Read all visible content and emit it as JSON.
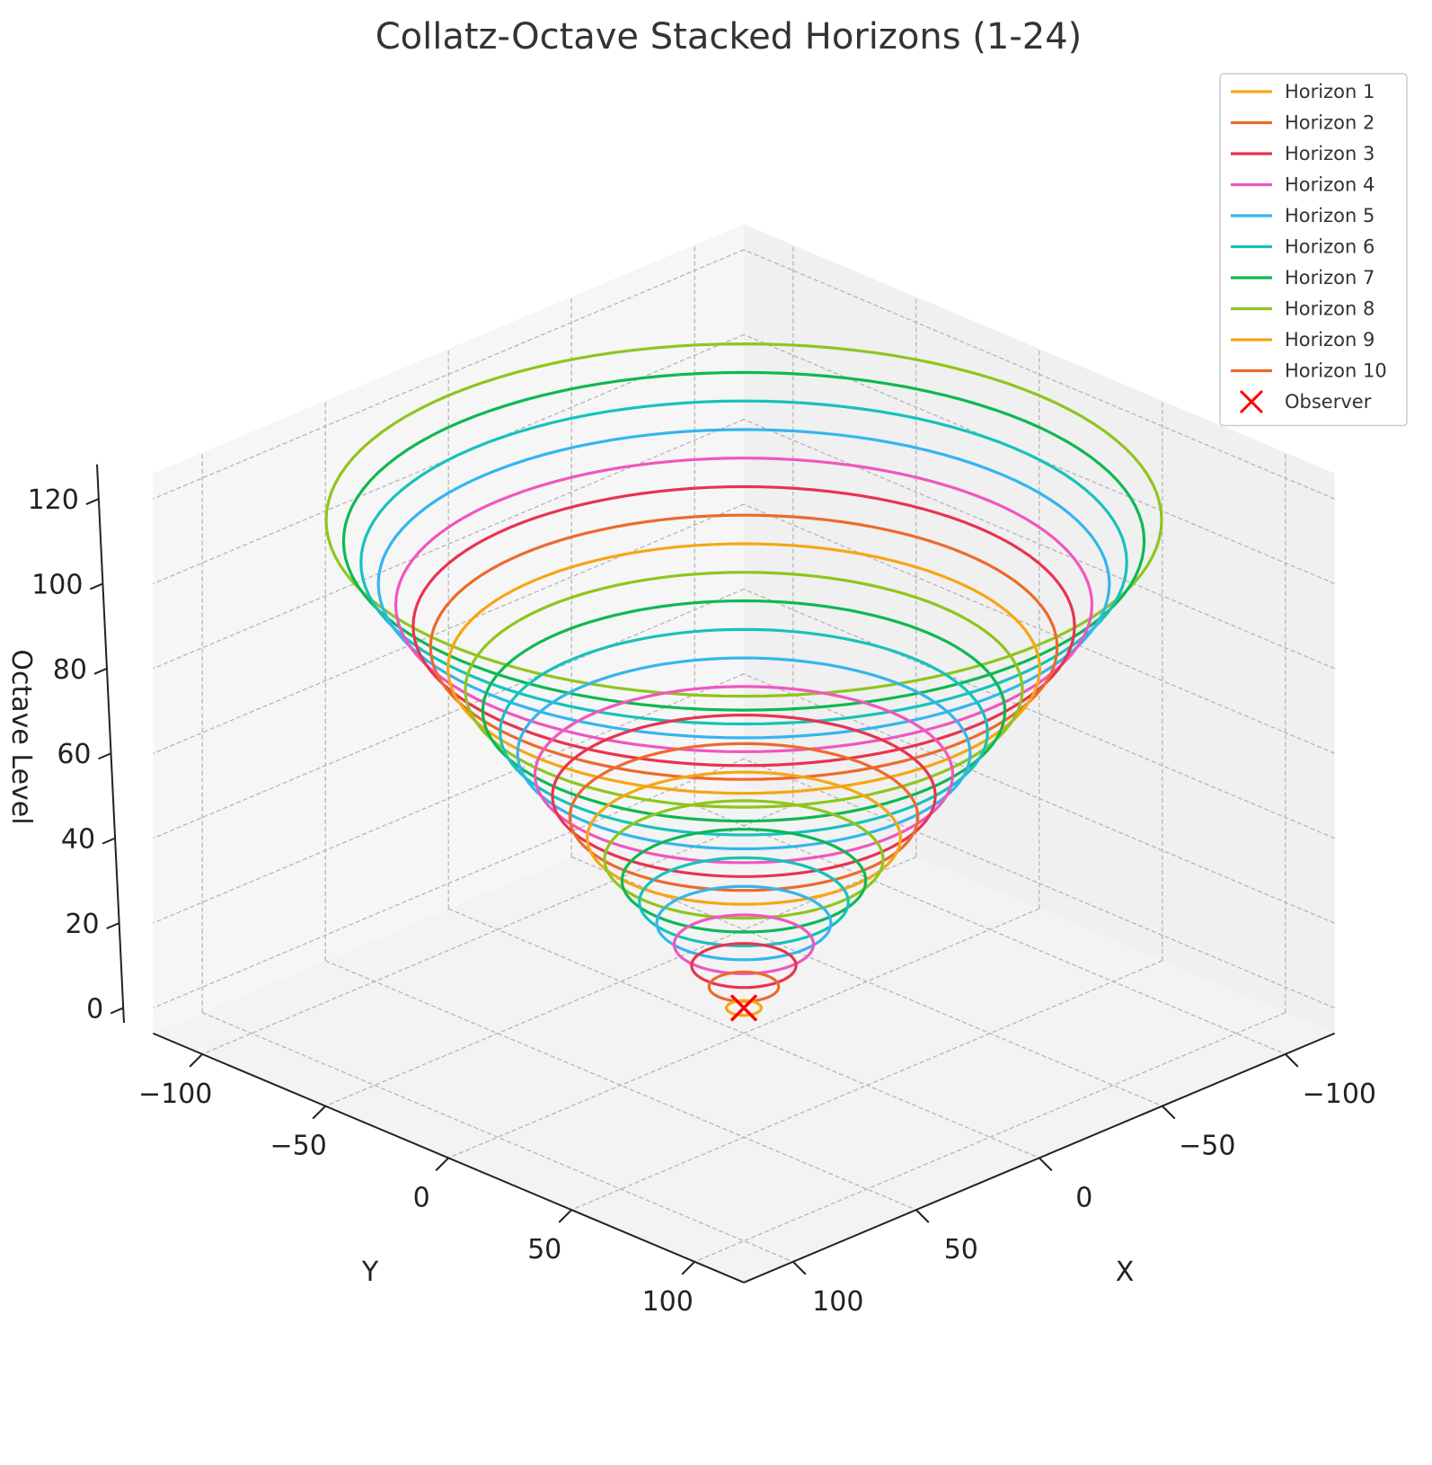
{
  "chart_data": {
    "type": "line",
    "projection": "3d",
    "title": "Collatz-Octave Stacked Horizons (1-24)",
    "xlabel": "X",
    "ylabel": "Y",
    "zlabel": "Octave Level",
    "xlim": [
      -120,
      120
    ],
    "ylim": [
      -120,
      120
    ],
    "zlim": [
      0,
      120
    ],
    "xticks": [
      -100,
      -50,
      0,
      50,
      100
    ],
    "yticks": [
      -100,
      -50,
      0,
      50,
      100
    ],
    "zticks": [
      0,
      20,
      40,
      60,
      80,
      100,
      120
    ],
    "xtick_labels": [
      "−100",
      "−50",
      "0",
      "50",
      "100"
    ],
    "ytick_labels": [
      "−100",
      "−50",
      "0",
      "50",
      "100"
    ],
    "ztick_labels": [
      "0",
      "20",
      "40",
      "60",
      "80",
      "100",
      "120"
    ],
    "grid": true,
    "legend_position": "top-right",
    "palette": [
      "#f5a614",
      "#ec6a2c",
      "#e8334f",
      "#f056c0",
      "#34b5ef",
      "#16c2bb",
      "#0db854",
      "#8fc51e"
    ],
    "series": [
      {
        "name": "Horizon 1",
        "radius": 5,
        "z": 0,
        "color": "#f5a614"
      },
      {
        "name": "Horizon 2",
        "radius": 10,
        "z": 5,
        "color": "#ec6a2c"
      },
      {
        "name": "Horizon 3",
        "radius": 15,
        "z": 10,
        "color": "#e8334f"
      },
      {
        "name": "Horizon 4",
        "radius": 20,
        "z": 15,
        "color": "#f056c0"
      },
      {
        "name": "Horizon 5",
        "radius": 25,
        "z": 20,
        "color": "#34b5ef"
      },
      {
        "name": "Horizon 6",
        "radius": 30,
        "z": 25,
        "color": "#16c2bb"
      },
      {
        "name": "Horizon 7",
        "radius": 35,
        "z": 30,
        "color": "#0db854"
      },
      {
        "name": "Horizon 8",
        "radius": 40,
        "z": 35,
        "color": "#8fc51e"
      },
      {
        "name": "Horizon 9",
        "radius": 45,
        "z": 40,
        "color": "#f5a614"
      },
      {
        "name": "Horizon 10",
        "radius": 50,
        "z": 45,
        "color": "#ec6a2c"
      },
      {
        "radius": 55,
        "z": 50,
        "color": "#e8334f"
      },
      {
        "radius": 60,
        "z": 55,
        "color": "#f056c0"
      },
      {
        "radius": 65,
        "z": 60,
        "color": "#34b5ef"
      },
      {
        "radius": 70,
        "z": 65,
        "color": "#16c2bb"
      },
      {
        "radius": 75,
        "z": 70,
        "color": "#0db854"
      },
      {
        "radius": 80,
        "z": 75,
        "color": "#8fc51e"
      },
      {
        "radius": 85,
        "z": 80,
        "color": "#f5a614"
      },
      {
        "radius": 90,
        "z": 85,
        "color": "#ec6a2c"
      },
      {
        "radius": 95,
        "z": 90,
        "color": "#e8334f"
      },
      {
        "radius": 100,
        "z": 95,
        "color": "#f056c0"
      },
      {
        "radius": 105,
        "z": 100,
        "color": "#34b5ef"
      },
      {
        "radius": 110,
        "z": 105,
        "color": "#16c2bb"
      },
      {
        "radius": 115,
        "z": 110,
        "color": "#0db854"
      },
      {
        "radius": 120,
        "z": 115,
        "color": "#8fc51e"
      }
    ],
    "observer": {
      "name": "Observer",
      "x": 0,
      "y": 0,
      "z": 0,
      "color": "#ff0000",
      "marker": "x"
    }
  }
}
